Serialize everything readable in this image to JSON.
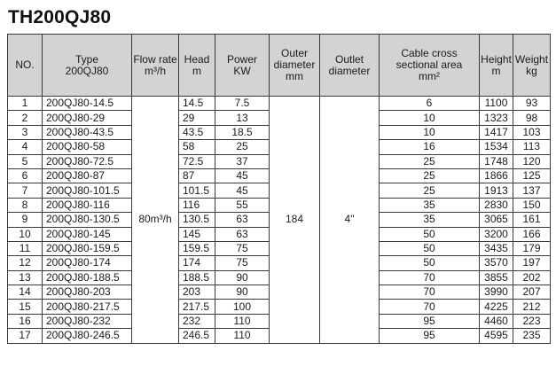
{
  "title": "TH200QJ80",
  "headers": {
    "no": "NO.",
    "type": [
      "Type",
      "200QJ80"
    ],
    "flow": [
      "Flow rate",
      "m³/h"
    ],
    "head": [
      "Head",
      "m"
    ],
    "power": [
      "Power",
      "KW"
    ],
    "outer": [
      "Outer",
      "diameter",
      "mm"
    ],
    "outlet": [
      "Outlet",
      "diameter"
    ],
    "cable": [
      "Cable cross",
      "sectional area",
      "mm²"
    ],
    "height": [
      "Height",
      "m"
    ],
    "weight": [
      "Weight",
      "kg"
    ]
  },
  "merged": {
    "flow": "80m³/h",
    "outer": "184",
    "outlet": "4\""
  },
  "rows": [
    {
      "no": "1",
      "type": "200QJ80-14.5",
      "head": "14.5",
      "power": "7.5",
      "cable": "6",
      "height": "1100",
      "weight": "93"
    },
    {
      "no": "2",
      "type": "200QJ80-29",
      "head": "29",
      "power": "13",
      "cable": "10",
      "height": "1323",
      "weight": "98"
    },
    {
      "no": "3",
      "type": "200QJ80-43.5",
      "head": "43.5",
      "power": "18.5",
      "cable": "10",
      "height": "1417",
      "weight": "103"
    },
    {
      "no": "4",
      "type": "200QJ80-58",
      "head": "58",
      "power": "25",
      "cable": "16",
      "height": "1534",
      "weight": "113"
    },
    {
      "no": "5",
      "type": "200QJ80-72.5",
      "head": "72.5",
      "power": "37",
      "cable": "25",
      "height": "1748",
      "weight": "120"
    },
    {
      "no": "6",
      "type": "200QJ80-87",
      "head": "87",
      "power": "45",
      "cable": "25",
      "height": "1866",
      "weight": "125"
    },
    {
      "no": "7",
      "type": "200QJ80-101.5",
      "head": "101.5",
      "power": "45",
      "cable": "25",
      "height": "1913",
      "weight": "137"
    },
    {
      "no": "8",
      "type": "200QJ80-116",
      "head": "116",
      "power": "55",
      "cable": "35",
      "height": "2830",
      "weight": "150"
    },
    {
      "no": "9",
      "type": "200QJ80-130.5",
      "head": "130.5",
      "power": "63",
      "cable": "35",
      "height": "3065",
      "weight": "161"
    },
    {
      "no": "10",
      "type": "200QJ80-145",
      "head": "145",
      "power": "63",
      "cable": "50",
      "height": "3200",
      "weight": "166"
    },
    {
      "no": "11",
      "type": "200QJ80-159.5",
      "head": "159.5",
      "power": "75",
      "cable": "50",
      "height": "3435",
      "weight": "179"
    },
    {
      "no": "12",
      "type": "200QJ80-174",
      "head": "174",
      "power": "75",
      "cable": "50",
      "height": "3570",
      "weight": "197"
    },
    {
      "no": "13",
      "type": "200QJ80-188.5",
      "head": "188.5",
      "power": "90",
      "cable": "70",
      "height": "3855",
      "weight": "202"
    },
    {
      "no": "14",
      "type": "200QJ80-203",
      "head": "203",
      "power": "90",
      "cable": "70",
      "height": "3990",
      "weight": "207"
    },
    {
      "no": "15",
      "type": "200QJ80-217.5",
      "head": "217.5",
      "power": "100",
      "cable": "70",
      "height": "4225",
      "weight": "212"
    },
    {
      "no": "16",
      "type": "200QJ80-232",
      "head": "232",
      "power": "110",
      "cable": "95",
      "height": "4460",
      "weight": "223"
    },
    {
      "no": "17",
      "type": "200QJ80-246.5",
      "head": "246.5",
      "power": "110",
      "cable": "95",
      "height": "4595",
      "weight": "235"
    }
  ]
}
